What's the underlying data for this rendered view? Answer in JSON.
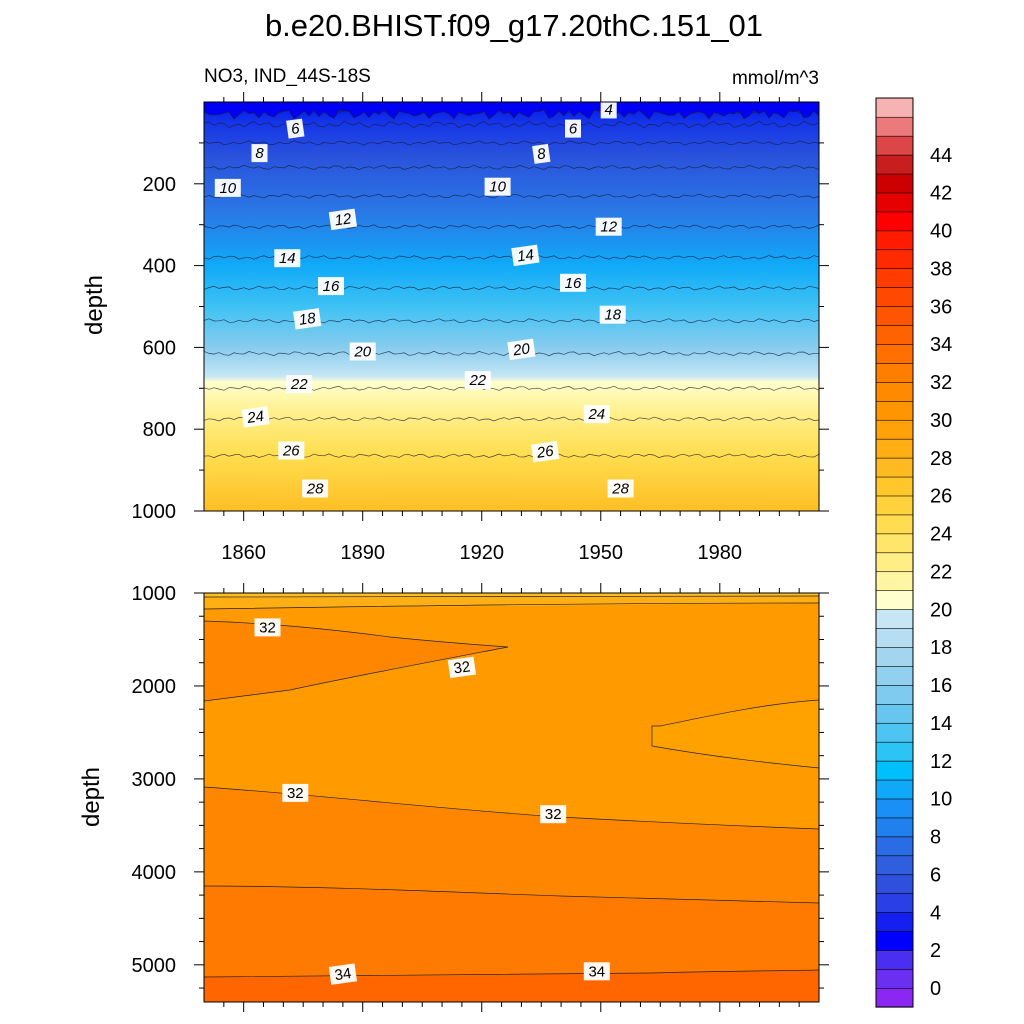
{
  "title": "b.e20.BHIST.f09_g17.20thC.151_01",
  "subtitle_left": "NO3, IND_44S-18S",
  "subtitle_right": "mmol/m^3",
  "chart_data": [
    {
      "type": "heatmap",
      "name": "upper-panel",
      "xlabel": "",
      "ylabel": "depth",
      "xlim": [
        1850,
        2005
      ],
      "ylim": [
        0,
        1000
      ],
      "y_inverted": true,
      "x_ticks": [
        "1860",
        "1890",
        "1920",
        "1950",
        "1980"
      ],
      "y_ticks": [
        "200",
        "400",
        "600",
        "800",
        "1000"
      ],
      "contour_levels": [
        4,
        6,
        8,
        10,
        12,
        14,
        16,
        18,
        20,
        22,
        24,
        26,
        28
      ],
      "contour_depths": [
        20,
        55,
        100,
        160,
        230,
        305,
        380,
        455,
        535,
        615,
        700,
        775,
        865
      ],
      "contour_labels": [
        {
          "value": "4",
          "year": 1952,
          "depth": 18
        },
        {
          "value": "6",
          "year": 1873,
          "depth": 65
        },
        {
          "value": "6",
          "year": 1943,
          "depth": 65
        },
        {
          "value": "8",
          "year": 1864,
          "depth": 125
        },
        {
          "value": "8",
          "year": 1935,
          "depth": 127
        },
        {
          "value": "10",
          "year": 1856,
          "depth": 210
        },
        {
          "value": "10",
          "year": 1924,
          "depth": 207
        },
        {
          "value": "12",
          "year": 1885,
          "depth": 287
        },
        {
          "value": "12",
          "year": 1952,
          "depth": 305
        },
        {
          "value": "14",
          "year": 1871,
          "depth": 382
        },
        {
          "value": "14",
          "year": 1931,
          "depth": 375
        },
        {
          "value": "16",
          "year": 1882,
          "depth": 450
        },
        {
          "value": "16",
          "year": 1943,
          "depth": 442
        },
        {
          "value": "18",
          "year": 1876,
          "depth": 530
        },
        {
          "value": "18",
          "year": 1953,
          "depth": 520
        },
        {
          "value": "20",
          "year": 1890,
          "depth": 610
        },
        {
          "value": "20",
          "year": 1930,
          "depth": 605
        },
        {
          "value": "22",
          "year": 1874,
          "depth": 690
        },
        {
          "value": "22",
          "year": 1919,
          "depth": 680
        },
        {
          "value": "24",
          "year": 1863,
          "depth": 770
        },
        {
          "value": "24",
          "year": 1949,
          "depth": 763
        },
        {
          "value": "26",
          "year": 1872,
          "depth": 852
        },
        {
          "value": "26",
          "year": 1936,
          "depth": 855
        },
        {
          "value": "28",
          "year": 1878,
          "depth": 945
        },
        {
          "value": "28",
          "year": 1955,
          "depth": 945
        }
      ]
    },
    {
      "type": "heatmap",
      "name": "lower-panel",
      "xlabel": "",
      "ylabel": "depth",
      "xlim": [
        1850,
        2005
      ],
      "ylim": [
        1000,
        5400
      ],
      "y_inverted": true,
      "y_ticks": [
        "1000",
        "2000",
        "3000",
        "4000",
        "5000"
      ],
      "contour_labels": [
        {
          "value": "32",
          "year": 1866,
          "depth": 1370
        },
        {
          "value": "32",
          "year": 1915,
          "depth": 1800
        },
        {
          "value": "32",
          "year": 1873,
          "depth": 3150
        },
        {
          "value": "32",
          "year": 1938,
          "depth": 3380
        },
        {
          "value": "34",
          "year": 1885,
          "depth": 5100
        },
        {
          "value": "34",
          "year": 1949,
          "depth": 5070
        }
      ]
    }
  ],
  "colorbar": {
    "labels": [
      "0",
      "2",
      "4",
      "6",
      "8",
      "10",
      "12",
      "14",
      "16",
      "18",
      "20",
      "22",
      "24",
      "26",
      "28",
      "30",
      "32",
      "34",
      "36",
      "38",
      "40",
      "42",
      "44"
    ],
    "colors": [
      "#8c26f2",
      "#6a2ff0",
      "#4b2ff0",
      "#0000ff",
      "#1420f0",
      "#2a3fe6",
      "#2f4fdd",
      "#2f5fde",
      "#2a6be6",
      "#2080ee",
      "#1a8ff5",
      "#10a8f8",
      "#00bfff",
      "#2cc3f5",
      "#4ec4f2",
      "#66c6f0",
      "#7ecbef",
      "#92d0ef",
      "#a3d6ee",
      "#b5def2",
      "#c6e6f5",
      "#ffffcc",
      "#fff5a3",
      "#ffed85",
      "#ffe66b",
      "#ffdc50",
      "#ffd23c",
      "#ffc72c",
      "#ffba1f",
      "#ffae14",
      "#ffa20a",
      "#ff9500",
      "#ff8a00",
      "#ff7e00",
      "#ff7000",
      "#ff6200",
      "#ff5500",
      "#ff4800",
      "#ff3b00",
      "#ff2a00",
      "#ff1a00",
      "#ff0000",
      "#e60000",
      "#cc0000",
      "#c81e1e",
      "#dc4646",
      "#ec7a7a",
      "#f7b2b2"
    ]
  }
}
